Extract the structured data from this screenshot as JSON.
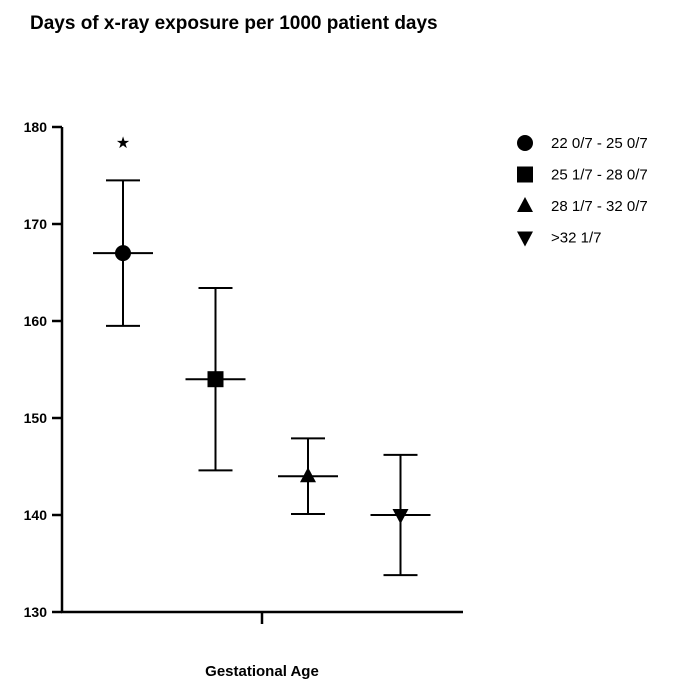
{
  "chart_data": {
    "type": "scatter",
    "title": "Days of x-ray exposure per 1000 patient days",
    "xlabel": "Gestational Age",
    "ylabel": "",
    "ylim": [
      130,
      180
    ],
    "yticks": [
      "130",
      "140",
      "150",
      "160",
      "170",
      "180"
    ],
    "grid": false,
    "legend_position": "top-right",
    "marker_color": "#000000",
    "annotation": "★",
    "series": [
      {
        "name": "22 0/7 - 25 0/7",
        "marker": "circle",
        "mean": 167,
        "lower": 159.5,
        "upper": 174.5
      },
      {
        "name": "25 1/7 - 28 0/7",
        "marker": "square",
        "mean": 154,
        "lower": 144.6,
        "upper": 163.4
      },
      {
        "name": "28 1/7 - 32 0/7",
        "marker": "triangle-up",
        "mean": 144,
        "lower": 140.1,
        "upper": 147.9
      },
      {
        "name": ">32 1/7",
        "marker": "triangle-down",
        "mean": 140,
        "lower": 133.8,
        "upper": 146.2
      }
    ]
  }
}
